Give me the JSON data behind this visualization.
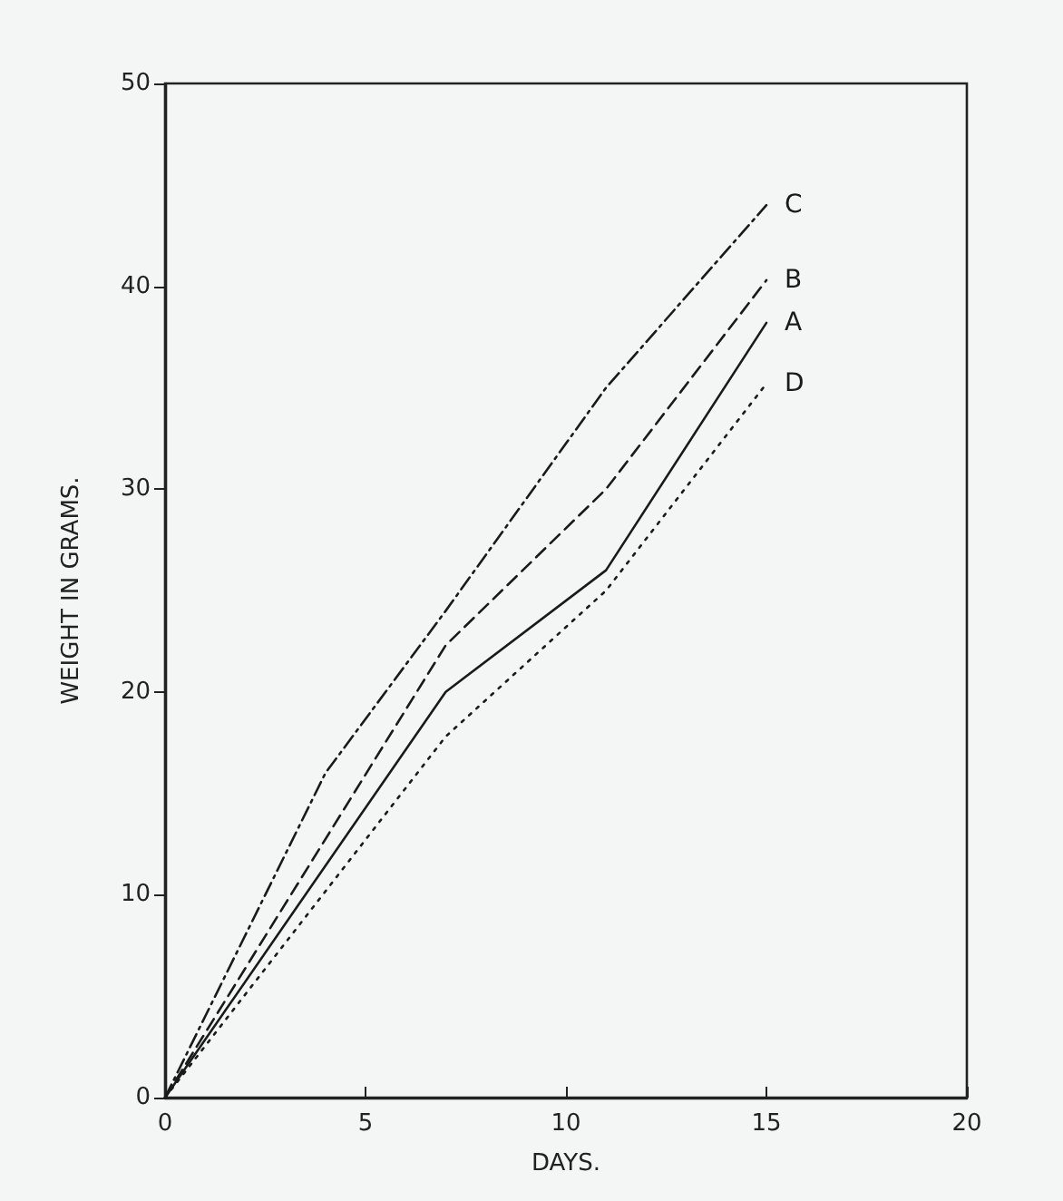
{
  "chart_data": {
    "type": "line",
    "xlabel": "DAYS.",
    "ylabel": "WEIGHT IN GRAMS.",
    "xlim": [
      0,
      20
    ],
    "xticks": [
      0,
      5,
      10,
      15,
      20
    ],
    "ylim": [
      0,
      50
    ],
    "yticks": [
      0,
      10,
      20,
      30,
      40,
      50
    ],
    "grid": false,
    "legend": false,
    "marker": "none",
    "series": [
      {
        "name": "C",
        "color": "#1a1a1a",
        "line_style": "dashdot",
        "x": [
          0,
          4,
          7,
          11,
          15
        ],
        "values": [
          0,
          16,
          24,
          35,
          44
        ]
      },
      {
        "name": "B",
        "color": "#1a1a1a",
        "line_style": "dashed",
        "x": [
          0,
          7,
          11,
          15
        ],
        "values": [
          0,
          22.3,
          30,
          40.3
        ]
      },
      {
        "name": "A",
        "color": "#1a1a1a",
        "line_style": "solid",
        "x": [
          0,
          7,
          11,
          15
        ],
        "values": [
          0,
          20,
          26,
          38.2
        ]
      },
      {
        "name": "D",
        "color": "#1a1a1a",
        "line_style": "dotted",
        "x": [
          0,
          7,
          11,
          15
        ],
        "values": [
          0,
          17.8,
          25,
          35.2
        ]
      }
    ]
  }
}
